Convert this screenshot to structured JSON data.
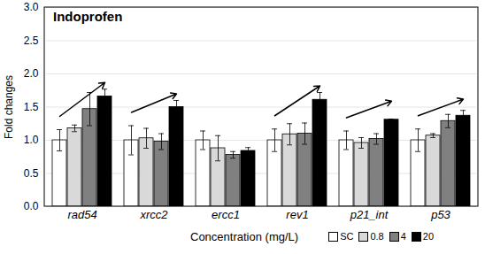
{
  "chart_data": {
    "type": "bar",
    "title": "Indoprofen",
    "x_label": "Concentration (mg/L)",
    "y_label": "Fold changes",
    "categories": [
      "rad54",
      "xrcc2",
      "ercc1",
      "rev1",
      "p21_int",
      "p53"
    ],
    "series": [
      {
        "name": "SC",
        "color": "#ffffff",
        "values": [
          1.0,
          1.0,
          1.0,
          1.0,
          1.0,
          1.0
        ],
        "errors": [
          0.16,
          0.22,
          0.14,
          0.17,
          0.14,
          0.17
        ]
      },
      {
        "name": "0.8",
        "color": "#d9d9d9",
        "values": [
          1.18,
          1.03,
          0.88,
          1.09,
          0.96,
          1.07
        ],
        "errors": [
          0.05,
          0.15,
          0.19,
          0.16,
          0.08,
          0.03
        ]
      },
      {
        "name": "4",
        "color": "#808080",
        "values": [
          1.47,
          0.98,
          0.78,
          1.1,
          1.02,
          1.29
        ],
        "errors": [
          0.25,
          0.12,
          0.05,
          0.16,
          0.08,
          0.1
        ]
      },
      {
        "name": "20",
        "color": "#000000",
        "values": [
          1.66,
          1.5,
          0.84,
          1.61,
          1.31,
          1.37
        ],
        "errors": [
          0.11,
          0.1,
          0.05,
          0.11,
          0.01,
          0.08
        ]
      }
    ],
    "ylim": [
      0,
      3
    ],
    "yticks": [
      {
        "value": 0,
        "label": "0.0"
      },
      {
        "value": 0.5,
        "label": "0.5"
      },
      {
        "value": 1,
        "label": "1.0"
      },
      {
        "value": 1.5,
        "label": "1.5"
      },
      {
        "value": 2,
        "label": "2.0"
      },
      {
        "value": 2.5,
        "label": "2.5"
      },
      {
        "value": 3,
        "label": "3.0"
      }
    ],
    "grid": true,
    "legend": "bottom-right"
  }
}
